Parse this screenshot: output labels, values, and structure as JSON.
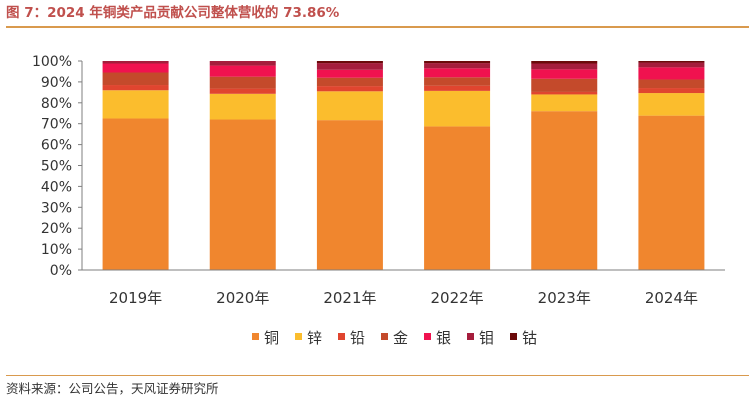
{
  "header": {
    "title": "图 7：2024 年铜类产品贡献公司整体营收的 73.86%"
  },
  "footer": {
    "source": "资料来源：公司公告，天风证券研究所"
  },
  "chart_data": {
    "type": "bar",
    "stacked": true,
    "categories": [
      "2019年",
      "2020年",
      "2021年",
      "2022年",
      "2023年",
      "2024年"
    ],
    "series": [
      {
        "name": "铜",
        "color": "#f0862e",
        "values": [
          72.5,
          72.0,
          71.7,
          68.7,
          76.0,
          73.86
        ]
      },
      {
        "name": "锌",
        "color": "#fbbd2d",
        "values": [
          13.5,
          12.3,
          13.8,
          17.0,
          8.0,
          10.8
        ]
      },
      {
        "name": "铅",
        "color": "#e0452f",
        "values": [
          2.5,
          2.5,
          2.5,
          2.5,
          1.2,
          2.4
        ]
      },
      {
        "name": "金",
        "color": "#c44a2b",
        "values": [
          6.0,
          5.7,
          4.0,
          4.0,
          6.3,
          4.1
        ]
      },
      {
        "name": "银",
        "color": "#f0124f",
        "values": [
          4.3,
          5.3,
          3.8,
          4.3,
          4.5,
          5.8
        ]
      },
      {
        "name": "钼",
        "color": "#a51d3c",
        "values": [
          1.2,
          2.2,
          3.2,
          2.5,
          2.8,
          2.3
        ]
      },
      {
        "name": "钴",
        "color": "#6b0a0a",
        "values": [
          0.0,
          0.0,
          1.0,
          1.0,
          1.2,
          0.74
        ]
      }
    ],
    "yticks": [
      "0%",
      "10%",
      "20%",
      "30%",
      "40%",
      "50%",
      "60%",
      "70%",
      "80%",
      "90%",
      "100%"
    ],
    "ylim": [
      0,
      100
    ],
    "grid": false,
    "legend_position": "bottom"
  }
}
